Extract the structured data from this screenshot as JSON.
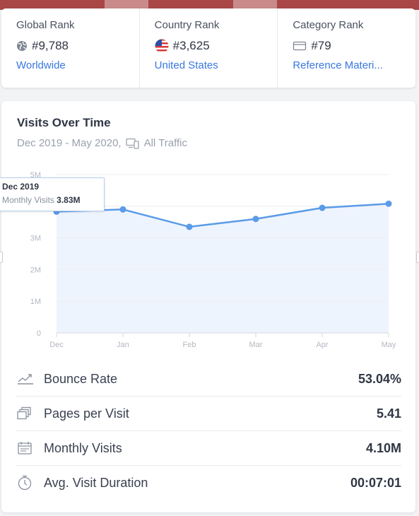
{
  "ranks": [
    {
      "title": "Global Rank",
      "icon": "globe-icon",
      "value": "#9,788",
      "link": "Worldwide"
    },
    {
      "title": "Country Rank",
      "icon": "us-flag-icon",
      "value": "#3,625",
      "link": "United States"
    },
    {
      "title": "Category Rank",
      "icon": "category-icon",
      "value": "#79",
      "link": "Reference Materi..."
    }
  ],
  "visits": {
    "title": "Visits Over Time",
    "date_range": "Dec 2019 - May 2020,",
    "traffic": "All Traffic"
  },
  "chart_data": {
    "type": "area",
    "categories": [
      "Dec",
      "Jan",
      "Feb",
      "Mar",
      "Apr",
      "May"
    ],
    "values": [
      3.83,
      3.9,
      3.35,
      3.6,
      3.95,
      4.08
    ],
    "unit": "M",
    "yticks": [
      "0",
      "1M",
      "2M",
      "3M",
      "4M",
      "5M"
    ],
    "ylim": [
      0,
      5
    ],
    "color": "#5b9be8",
    "fill": "#eef4fd",
    "grid": true
  },
  "tooltip": {
    "date": "Dec 2019",
    "label": "Monthly Visits",
    "value": "3.83M"
  },
  "metrics": [
    {
      "icon": "bounce-rate-icon",
      "label": "Bounce Rate",
      "value": "53.04%"
    },
    {
      "icon": "pages-per-visit-icon",
      "label": "Pages per Visit",
      "value": "5.41"
    },
    {
      "icon": "calendar-icon",
      "label": "Monthly Visits",
      "value": "4.10M"
    },
    {
      "icon": "stopwatch-icon",
      "label": "Avg. Visit Duration",
      "value": "00:07:01"
    }
  ]
}
